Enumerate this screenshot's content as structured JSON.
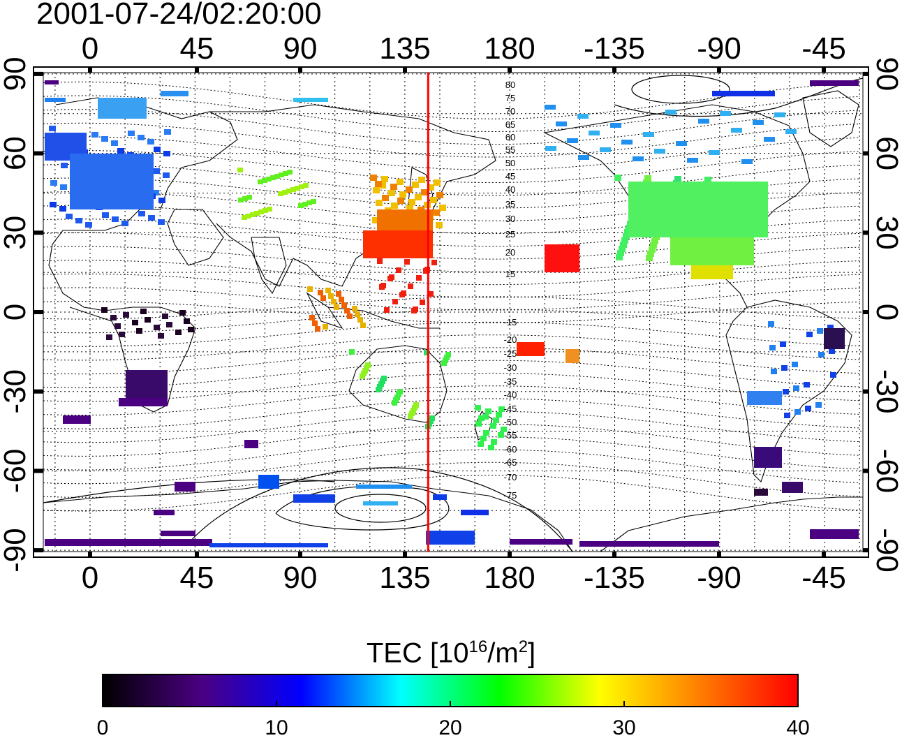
{
  "title": "2001-07-24/02:20:00",
  "map": {
    "top_lon_labels": [
      "0",
      "45",
      "90",
      "135",
      "180",
      "-135",
      "-90",
      "-45"
    ],
    "bottom_lon_labels": [
      "0",
      "45",
      "90",
      "135",
      "180",
      "-135",
      "-90",
      "-45"
    ],
    "left_lat_labels": [
      "90",
      "60",
      "30",
      "0",
      "-30",
      "-60",
      "-90"
    ],
    "right_lat_labels": [
      "90",
      "60",
      "30",
      "0",
      "-30",
      "-60",
      "-90"
    ],
    "lat_values": [
      90,
      60,
      30,
      0,
      -30,
      -60,
      -90
    ],
    "magnetic_lat_labels_north": [
      "80",
      "75",
      "70",
      "65",
      "60",
      "55",
      "50",
      "45",
      "40",
      "35",
      "30",
      "25",
      "20",
      "15"
    ],
    "magnetic_lat_labels_south": [
      "-15",
      "-20",
      "-25",
      "-30",
      "-35",
      "-40",
      "-45",
      "-50",
      "-55",
      "-60",
      "-65",
      "-70",
      "-75"
    ],
    "grid": "dotted",
    "meridian_line": {
      "lon": 145,
      "color": "#ff0000"
    },
    "line_color": "#000000"
  },
  "colorbar": {
    "title_prefix": "TEC  [10",
    "title_exp": "16",
    "title_mid": "/m",
    "title_exp2": "2",
    "title_suffix": "]",
    "tick_labels": [
      "0",
      "10",
      "20",
      "30",
      "40"
    ],
    "min": 0,
    "max": 40,
    "colors": [
      "#000000",
      "#4b0082",
      "#0000ff",
      "#00ffff",
      "#00ff00",
      "#ffff00",
      "#ff7f00",
      "#ff0000"
    ]
  }
}
